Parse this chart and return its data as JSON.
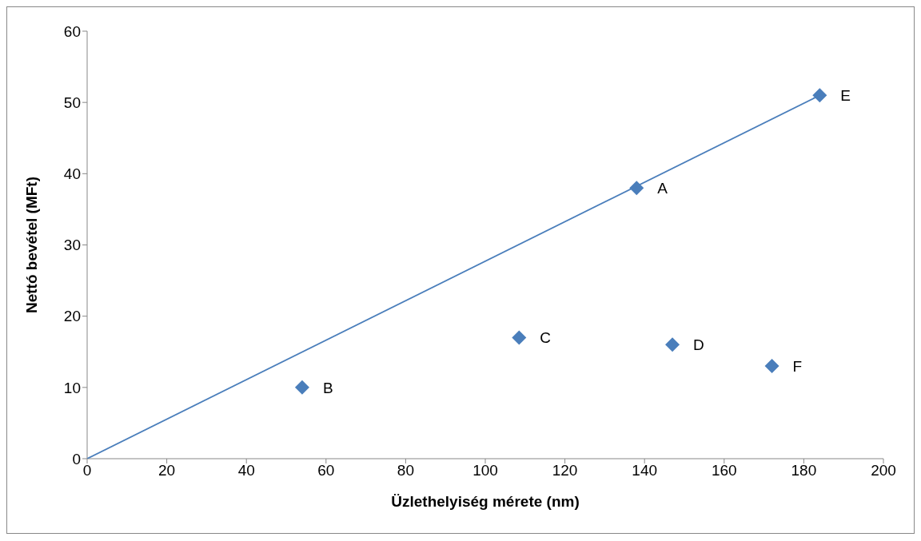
{
  "chart_data": {
    "type": "scatter",
    "xlabel": "Üzlethelyiség mérete (nm)",
    "ylabel": "Nettó bevétel (MFt)",
    "xlim": [
      0,
      200
    ],
    "xticks": [
      0,
      20,
      40,
      60,
      80,
      100,
      120,
      140,
      160,
      180,
      200
    ],
    "ylim": [
      0,
      60
    ],
    "yticks": [
      0,
      10,
      20,
      30,
      40,
      50,
      60
    ],
    "grid": false,
    "marker": "diamond",
    "series": [
      {
        "color": "#4a7ebb",
        "x": [
          138,
          54,
          108.5,
          147,
          184,
          172
        ],
        "values": [
          38,
          10,
          17,
          16,
          51,
          13
        ]
      },
      {
        "type": "line",
        "color": "#4a7ebb",
        "marker": "none",
        "x": [
          0,
          184
        ],
        "values": [
          0,
          51
        ]
      }
    ],
    "annotations": [
      {
        "text": "A",
        "x": 138,
        "y": 38
      },
      {
        "text": "B",
        "x": 54,
        "y": 10
      },
      {
        "text": "C",
        "x": 108.5,
        "y": 17
      },
      {
        "text": "D",
        "x": 147,
        "y": 16
      },
      {
        "text": "E",
        "x": 184,
        "y": 51
      },
      {
        "text": "F",
        "x": 172,
        "y": 13
      }
    ]
  }
}
